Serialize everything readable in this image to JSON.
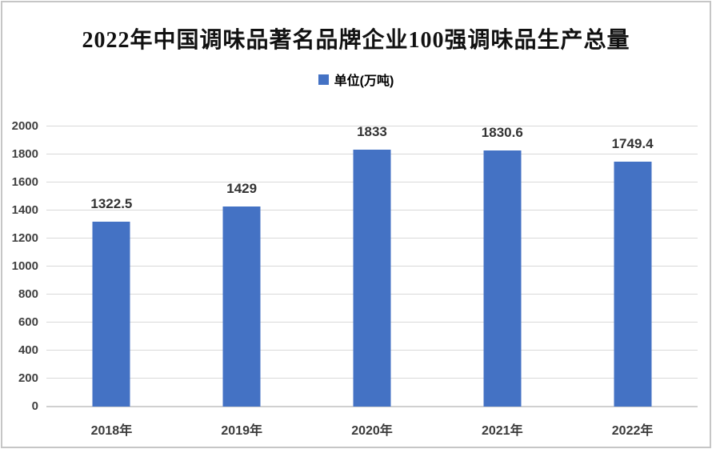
{
  "title": "2022年中国调味品著名品牌企业100强调味品生产总量",
  "legend": {
    "label": "单位(万吨)",
    "color": "#4472C4"
  },
  "chart_data": {
    "type": "bar",
    "title": "2022年中国调味品著名品牌企业100强调味品生产总量",
    "series_name": "单位(万吨)",
    "categories": [
      "2018年",
      "2019年",
      "2020年",
      "2021年",
      "2022年"
    ],
    "values": [
      1322.5,
      1429,
      1833,
      1830.6,
      1749.4
    ],
    "data_labels": [
      "1322.5",
      "1429",
      "1833",
      "1830.6",
      "1749.4"
    ],
    "xlabel": "",
    "ylabel": "",
    "ylim": [
      0,
      2000
    ],
    "ytick_step": 200,
    "yticks": [
      0,
      200,
      400,
      600,
      800,
      1000,
      1200,
      1400,
      1600,
      1800,
      2000
    ],
    "grid": true,
    "legend_position": "top-center",
    "bar_color": "#4472C4",
    "gridline_color": "#d9d9d9"
  }
}
